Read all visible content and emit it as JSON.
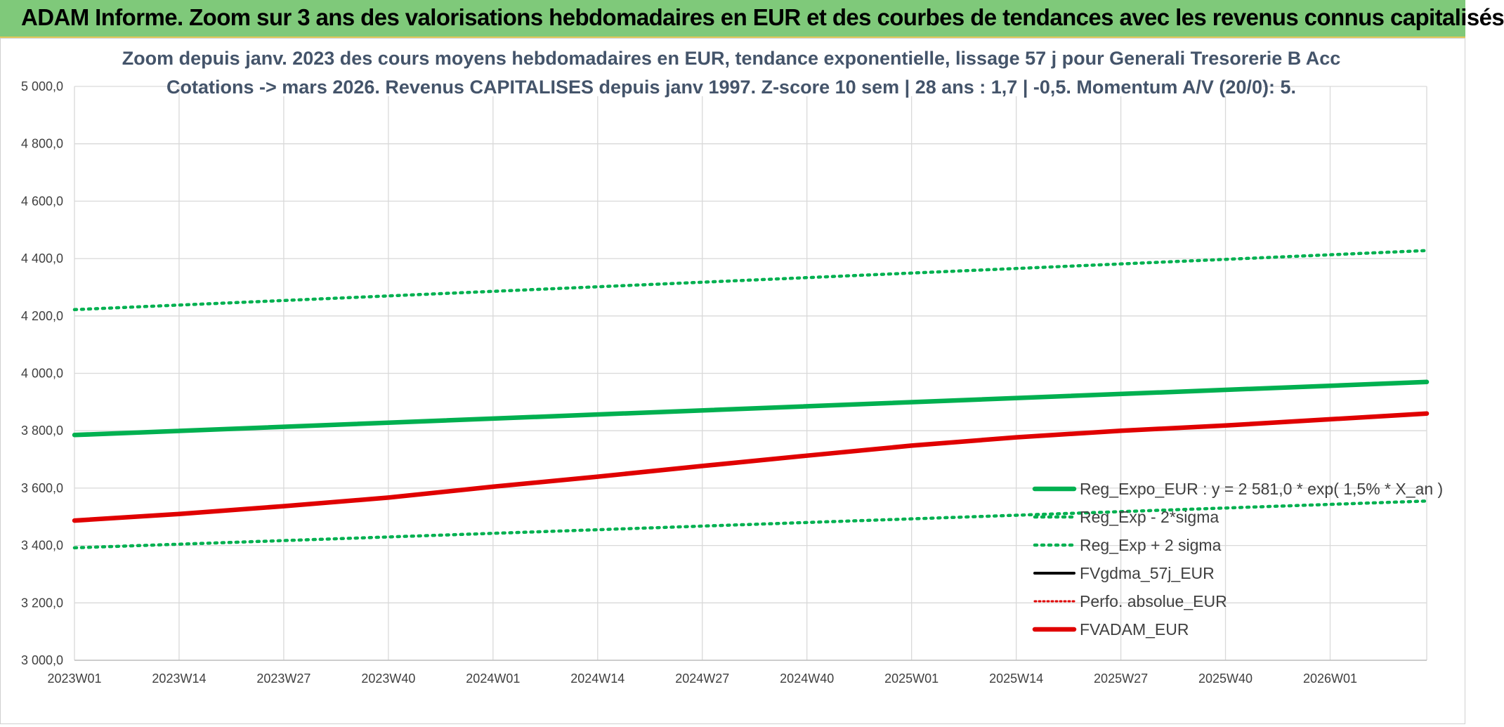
{
  "header": {
    "title": "ADAM Informe. Zoom sur 3 ans des valorisations hebdomadaires en EUR et des courbes de tendances avec les revenus connus capitalisés"
  },
  "chart_data": {
    "type": "line",
    "title_line1": "Zoom depuis janv. 2023 des cours moyens hebdomadaires en EUR, tendance exponentielle, lissage 57 j pour Generali Tresorerie B Acc",
    "title_line2": "Cotations -> mars 2026. Revenus CAPITALISES depuis janv 1997. Z-score 10 sem | 28 ans : 1,7 | -0,5. Momentum A/V (20/0): 5.",
    "x_tick_labels": [
      "2023W01",
      "2023W14",
      "2023W27",
      "2023W40",
      "2024W01",
      "2024W14",
      "2024W27",
      "2024W40",
      "2025W01",
      "2025W14",
      "2025W27",
      "2025W40",
      "2026W01"
    ],
    "x_range": [
      0,
      168
    ],
    "x_tick_positions": [
      0,
      13,
      26,
      39,
      52,
      65,
      78,
      91,
      104,
      117,
      130,
      143,
      156
    ],
    "y_tick_labels": [
      "3 000,0",
      "3 200,0",
      "3 400,0",
      "3 600,0",
      "3 800,0",
      "4 000,0",
      "4 200,0",
      "4 400,0",
      "4 600,0",
      "4 800,0",
      "5 000,0"
    ],
    "ylim": [
      3000,
      5000
    ],
    "y_step": 200,
    "grid": true,
    "legend_position": "bottom-right",
    "series": [
      {
        "name": "Reg_Expo_EUR : y = 2 581,0 * exp( 1,5% *  X_an )",
        "color": "#00b050",
        "style": "solid-thick",
        "x": [
          0,
          168
        ],
        "y": [
          3785,
          3970
        ]
      },
      {
        "name": "Reg_Exp - 2*sigma",
        "color": "#00b050",
        "style": "dotted",
        "x": [
          0,
          168
        ],
        "y": [
          3392,
          3555
        ]
      },
      {
        "name": "Reg_Exp + 2 sigma",
        "color": "#00b050",
        "style": "dotted",
        "x": [
          0,
          168
        ],
        "y": [
          4222,
          4428
        ]
      },
      {
        "name": "FVgdma_57j_EUR",
        "color": "#000000",
        "style": "solid",
        "x": [],
        "y": []
      },
      {
        "name": "Perfo. absolue_EUR",
        "color": "#e00000",
        "style": "dotted-thin",
        "x": [],
        "y": []
      },
      {
        "name": "FVADAM_EUR",
        "color": "#e00000",
        "style": "solid-thick",
        "x": [
          0,
          13,
          26,
          39,
          52,
          65,
          78,
          91,
          104,
          117,
          130,
          143,
          156,
          168
        ],
        "y": [
          3487,
          3510,
          3537,
          3567,
          3605,
          3640,
          3677,
          3713,
          3748,
          3777,
          3800,
          3818,
          3840,
          3860
        ]
      }
    ]
  }
}
